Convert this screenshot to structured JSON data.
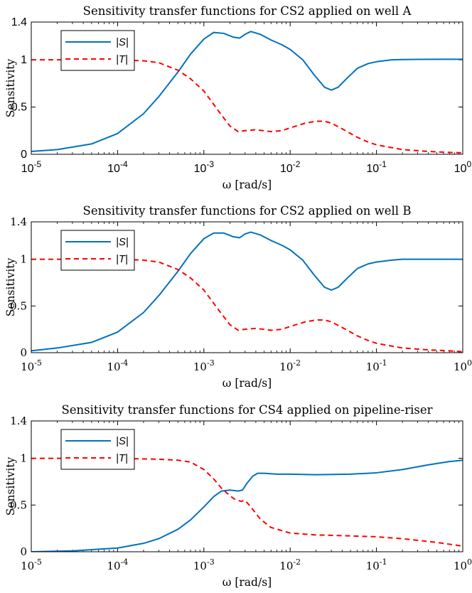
{
  "colors": {
    "S": "#0072BD",
    "T": "#FF0000",
    "axis": "#000000"
  },
  "chart_data": [
    {
      "type": "line",
      "title": "Sensitivity transfer functions for CS2 applied on well A",
      "xlabel": "ω [rad/s]",
      "ylabel": "Sensitivity",
      "xscale": "log",
      "xlim": [
        1e-05,
        1
      ],
      "ylim": [
        0,
        1.4
      ],
      "xticks": [
        "10^-5",
        "10^-4",
        "10^-3",
        "10^-2",
        "10^-1",
        "10^0"
      ],
      "yticks": [
        "0",
        "0.5",
        "1",
        "1.4"
      ],
      "tick_style": "bold",
      "legend": {
        "position": "top-left",
        "entries": [
          "|S|",
          "|T|"
        ]
      },
      "series": [
        {
          "name": "|S|",
          "style": "solid",
          "x": [
            1e-05,
            2e-05,
            5e-05,
            0.0001,
            0.0002,
            0.0003,
            0.0005,
            0.0007,
            0.001,
            0.0013,
            0.0017,
            0.0022,
            0.0026,
            0.003,
            0.0035,
            0.0045,
            0.006,
            0.008,
            0.01,
            0.014,
            0.019,
            0.025,
            0.03,
            0.036,
            0.045,
            0.06,
            0.08,
            0.1,
            0.15,
            0.2,
            0.3,
            0.5,
            1
          ],
          "y": [
            0.03,
            0.05,
            0.11,
            0.22,
            0.43,
            0.61,
            0.87,
            1.06,
            1.22,
            1.29,
            1.28,
            1.24,
            1.23,
            1.27,
            1.3,
            1.27,
            1.21,
            1.16,
            1.11,
            1.0,
            0.84,
            0.71,
            0.68,
            0.71,
            0.8,
            0.91,
            0.96,
            0.98,
            1.0,
            1.003,
            1.005,
            1.006,
            1.006
          ]
        },
        {
          "name": "|T|",
          "style": "dashed",
          "x": [
            1e-05,
            0.0001,
            0.0002,
            0.0003,
            0.0005,
            0.0007,
            0.001,
            0.0015,
            0.002,
            0.0025,
            0.003,
            0.004,
            0.006,
            0.008,
            0.01,
            0.015,
            0.02,
            0.025,
            0.03,
            0.04,
            0.06,
            0.08,
            0.1,
            0.2,
            0.4,
            0.7,
            1
          ],
          "y": [
            1.0,
            1.0,
            0.99,
            0.97,
            0.89,
            0.8,
            0.67,
            0.45,
            0.3,
            0.24,
            0.25,
            0.26,
            0.24,
            0.25,
            0.28,
            0.33,
            0.35,
            0.35,
            0.33,
            0.27,
            0.18,
            0.13,
            0.1,
            0.05,
            0.03,
            0.02,
            0.015
          ]
        }
      ]
    },
    {
      "type": "line",
      "title": "Sensitivity transfer functions for CS2 applied on well B",
      "xlabel": "ω [rad/s]",
      "ylabel": "Sensitivity",
      "xscale": "log",
      "xlim": [
        1e-05,
        1
      ],
      "ylim": [
        0,
        1.4
      ],
      "xticks": [
        "10^-5",
        "10^-4",
        "10^-3",
        "10^-2",
        "10^-1",
        "10^0"
      ],
      "yticks": [
        "0",
        "0.5",
        "1",
        "1.4"
      ],
      "tick_style": "normal",
      "legend": {
        "position": "top-left",
        "entries": [
          "|S|",
          "|T|"
        ]
      },
      "series": [
        {
          "name": "|S|",
          "style": "solid",
          "x": [
            1e-05,
            2e-05,
            5e-05,
            0.0001,
            0.0002,
            0.0003,
            0.0005,
            0.0007,
            0.001,
            0.0013,
            0.0017,
            0.0022,
            0.0026,
            0.003,
            0.0035,
            0.0045,
            0.006,
            0.008,
            0.01,
            0.014,
            0.019,
            0.025,
            0.03,
            0.036,
            0.045,
            0.06,
            0.08,
            0.1,
            0.15,
            0.2,
            0.3,
            0.5,
            1
          ],
          "y": [
            0.02,
            0.05,
            0.11,
            0.22,
            0.43,
            0.61,
            0.87,
            1.06,
            1.22,
            1.28,
            1.28,
            1.24,
            1.23,
            1.27,
            1.29,
            1.26,
            1.2,
            1.15,
            1.1,
            0.99,
            0.83,
            0.7,
            0.67,
            0.7,
            0.79,
            0.9,
            0.95,
            0.97,
            0.99,
            1.0,
            1.0,
            1.0,
            1.0
          ]
        },
        {
          "name": "|T|",
          "style": "dashed",
          "x": [
            1e-05,
            0.0001,
            0.0002,
            0.0003,
            0.0005,
            0.0007,
            0.001,
            0.0015,
            0.002,
            0.0025,
            0.003,
            0.004,
            0.006,
            0.008,
            0.01,
            0.015,
            0.02,
            0.025,
            0.03,
            0.04,
            0.06,
            0.08,
            0.1,
            0.2,
            0.4,
            0.7,
            1
          ],
          "y": [
            1.0,
            1.0,
            0.99,
            0.97,
            0.89,
            0.8,
            0.67,
            0.45,
            0.3,
            0.24,
            0.25,
            0.26,
            0.24,
            0.25,
            0.28,
            0.33,
            0.35,
            0.35,
            0.33,
            0.27,
            0.18,
            0.13,
            0.1,
            0.05,
            0.03,
            0.02,
            0.01
          ]
        }
      ]
    },
    {
      "type": "line",
      "title": "Sensitivity transfer functions for CS4 applied on pipeline-riser",
      "xlabel": "ω [rad/s]",
      "ylabel": "Sensitivity",
      "xscale": "log",
      "xlim": [
        1e-05,
        1
      ],
      "ylim": [
        0,
        1.4
      ],
      "xticks": [
        "10^-5",
        "10^-4",
        "10^-3",
        "10^-2",
        "10^-1",
        "10^0"
      ],
      "yticks": [
        "0",
        "0.5",
        "1",
        "1.4"
      ],
      "tick_style": "normal",
      "legend": {
        "position": "top-left",
        "entries": [
          "|S|",
          "|T|"
        ]
      },
      "series": [
        {
          "name": "|S|",
          "style": "solid",
          "x": [
            1e-05,
            3e-05,
            0.0001,
            0.0002,
            0.0003,
            0.0005,
            0.0007,
            0.001,
            0.0013,
            0.0016,
            0.002,
            0.0025,
            0.0028,
            0.0032,
            0.0037,
            0.0042,
            0.005,
            0.007,
            0.01,
            0.02,
            0.05,
            0.1,
            0.2,
            0.4,
            0.7,
            1
          ],
          "y": [
            0.0,
            0.01,
            0.04,
            0.09,
            0.14,
            0.24,
            0.34,
            0.48,
            0.59,
            0.65,
            0.66,
            0.65,
            0.66,
            0.74,
            0.81,
            0.84,
            0.84,
            0.83,
            0.83,
            0.825,
            0.83,
            0.845,
            0.88,
            0.93,
            0.965,
            0.98
          ]
        },
        {
          "name": "|T|",
          "style": "dashed",
          "x": [
            1e-05,
            0.0001,
            0.0003,
            0.0005,
            0.0007,
            0.001,
            0.0013,
            0.0016,
            0.002,
            0.0023,
            0.0027,
            0.003,
            0.0035,
            0.0045,
            0.006,
            0.01,
            0.02,
            0.05,
            0.1,
            0.2,
            0.5,
            1
          ],
          "y": [
            1.0,
            1.0,
            0.99,
            0.98,
            0.96,
            0.88,
            0.78,
            0.68,
            0.6,
            0.56,
            0.54,
            0.55,
            0.48,
            0.35,
            0.26,
            0.2,
            0.18,
            0.17,
            0.16,
            0.14,
            0.1,
            0.06
          ]
        }
      ]
    }
  ]
}
